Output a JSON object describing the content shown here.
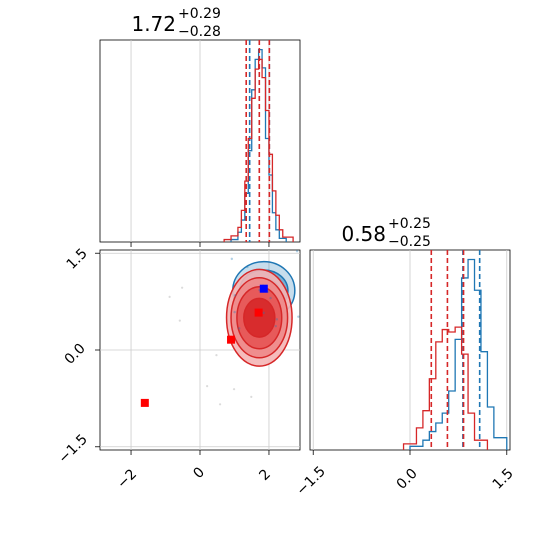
{
  "colors": {
    "blue": "#1f77b4",
    "red": "#d62728",
    "grid": "#cccccc",
    "marker_red": "#ff0000",
    "marker_blue": "#0000ff"
  },
  "chart_data": [
    {
      "type": "histogram",
      "panel": "top-left",
      "title": {
        "value": "1.72",
        "upper": "+0.29",
        "lower": "−0.28"
      },
      "xlim": [
        -2.9,
        2.9
      ],
      "grid": true,
      "series": [
        {
          "name": "",
          "color": "#1f77b4",
          "bin_edges": [
            0.9,
            1.1,
            1.2,
            1.3,
            1.4,
            1.5,
            1.6,
            1.7,
            1.8,
            1.9,
            2.0,
            2.1,
            2.2,
            2.3,
            2.5
          ],
          "counts": [
            2,
            8,
            18,
            40,
            75,
            125,
            150,
            158,
            143,
            85,
            55,
            24,
            10,
            3
          ],
          "quantiles": [
            1.44,
            2.01
          ]
        },
        {
          "name": "",
          "color": "#d62728",
          "bin_edges": [
            0.7,
            0.9,
            1.1,
            1.2,
            1.3,
            1.4,
            1.5,
            1.6,
            1.7,
            1.8,
            1.9,
            2.0,
            2.1,
            2.2,
            2.3,
            2.4,
            2.7
          ],
          "counts": [
            2,
            5,
            12,
            26,
            50,
            85,
            118,
            142,
            150,
            135,
            108,
            72,
            42,
            22,
            10,
            4
          ],
          "quantiles": [
            1.34,
            1.72,
            2.01
          ]
        }
      ]
    },
    {
      "type": "scatter",
      "panel": "bottom-left",
      "xlim": [
        -2.9,
        2.9
      ],
      "ylim": [
        -1.55,
        1.55
      ],
      "grid": true,
      "x_ticks": [
        "−2",
        "0",
        "2"
      ],
      "x_tick_values": [
        -2,
        0,
        2
      ],
      "y_ticks": [
        "−1.5",
        "0.0",
        "1.5"
      ],
      "y_tick_values": [
        -1.5,
        0.0,
        1.5
      ],
      "points_red": [
        {
          "x": -1.6,
          "y": -0.82
        },
        {
          "x": 0.9,
          "y": 0.16
        },
        {
          "x": 1.7,
          "y": 0.58
        }
      ],
      "points_blue": [
        {
          "x": 1.85,
          "y": 0.95
        }
      ],
      "contours_blue": {
        "cx": 1.85,
        "cy": 0.92,
        "rx": [
          0.9,
          0.7,
          0.45
        ],
        "ry": [
          0.45,
          0.32,
          0.18
        ]
      },
      "contours_red": {
        "cx": 1.72,
        "cy": 0.5,
        "rx": [
          0.95,
          0.82,
          0.65,
          0.45
        ],
        "ry": [
          0.75,
          0.62,
          0.48,
          0.3
        ]
      }
    },
    {
      "type": "histogram",
      "panel": "bottom-right",
      "title": {
        "value": "0.58",
        "upper": "+0.25",
        "lower": "−0.25"
      },
      "xlim": [
        -1.55,
        1.55
      ],
      "grid": true,
      "x_ticks": [
        "−1.5",
        "0.0",
        "1.5"
      ],
      "x_tick_values": [
        -1.5,
        0.0,
        1.5
      ],
      "series": [
        {
          "name": "",
          "color": "#1f77b4",
          "bin_edges": [
            0.0,
            0.2,
            0.3,
            0.4,
            0.5,
            0.6,
            0.7,
            0.8,
            0.9,
            1.0,
            1.1,
            1.2,
            1.3,
            1.5
          ],
          "counts": [
            3,
            8,
            15,
            22,
            30,
            48,
            90,
            140,
            155,
            130,
            80,
            35,
            10
          ],
          "quantiles": [
            0.82,
            1.08
          ]
        },
        {
          "name": "",
          "color": "#d62728",
          "bin_edges": [
            -0.1,
            0.1,
            0.2,
            0.3,
            0.4,
            0.5,
            0.6,
            0.7,
            0.8,
            0.9,
            1.0,
            1.2
          ],
          "counts": [
            5,
            18,
            32,
            58,
            88,
            98,
            96,
            100,
            78,
            30,
            8
          ],
          "quantiles": [
            0.33,
            0.58,
            0.83
          ]
        }
      ]
    }
  ]
}
